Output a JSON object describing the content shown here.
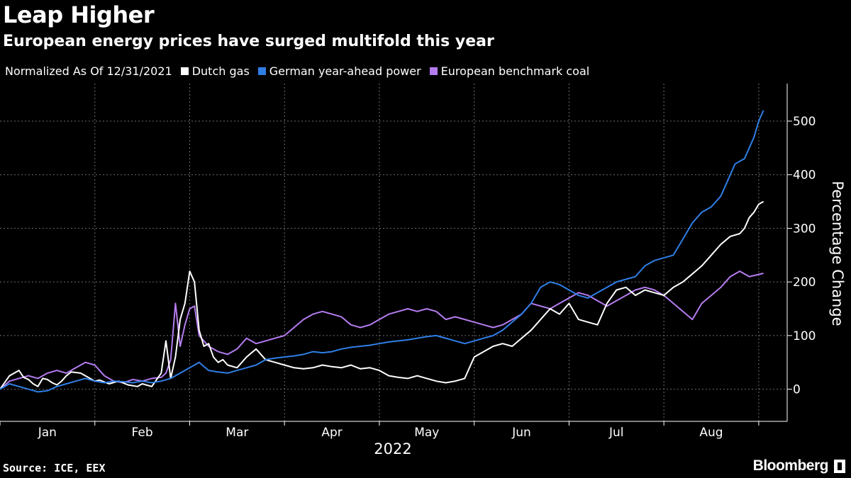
{
  "header": {
    "title": "Leap Higher",
    "subtitle": "European energy prices have surged multifold this year"
  },
  "legend": {
    "note": "Normalized As Of 12/31/2021"
  },
  "footer": {
    "source": "Source: ICE, EEX",
    "brand": "Bloomberg"
  },
  "colors": {
    "background": "#000000",
    "dutch_gas": "#ffffff",
    "german_power": "#2f7fe6",
    "coal": "#b57cf0",
    "grid": "#6e6e6e"
  },
  "chart_data": {
    "type": "line",
    "title": "Leap Higher",
    "subtitle": "European energy prices have surged multifold this year",
    "xlabel": "2022",
    "ylabel": "Percentage Change",
    "ylim": [
      -60,
      570
    ],
    "yticks": [
      0,
      100,
      200,
      300,
      400,
      500
    ],
    "xlim": [
      0,
      8.3
    ],
    "x_unit": "months since 2021-12-31",
    "xticks": [
      {
        "label": "Jan",
        "x": 0.5
      },
      {
        "label": "Feb",
        "x": 1.5
      },
      {
        "label": "Mar",
        "x": 2.5
      },
      {
        "label": "Apr",
        "x": 3.5
      },
      {
        "label": "May",
        "x": 4.5
      },
      {
        "label": "Jun",
        "x": 5.5
      },
      {
        "label": "Jul",
        "x": 6.5
      },
      {
        "label": "Aug",
        "x": 7.5
      }
    ],
    "month_boundaries": [
      0,
      1,
      2,
      3,
      4,
      5,
      6,
      7,
      8
    ],
    "grid": true,
    "legend_position": "top-left",
    "series": [
      {
        "name": "Dutch gas",
        "color": "#ffffff",
        "x": [
          0,
          0.1,
          0.15,
          0.2,
          0.25,
          0.3,
          0.35,
          0.4,
          0.45,
          0.5,
          0.55,
          0.6,
          0.65,
          0.7,
          0.75,
          0.85,
          0.95,
          1.0,
          1.05,
          1.15,
          1.25,
          1.35,
          1.45,
          1.5,
          1.6,
          1.7,
          1.75,
          1.8,
          1.85,
          1.9,
          1.95,
          2.0,
          2.05,
          2.1,
          2.15,
          2.2,
          2.25,
          2.3,
          2.35,
          2.4,
          2.5,
          2.6,
          2.7,
          2.8,
          2.9,
          3.0,
          3.1,
          3.2,
          3.3,
          3.4,
          3.5,
          3.6,
          3.7,
          3.8,
          3.9,
          4.0,
          4.1,
          4.2,
          4.3,
          4.4,
          4.5,
          4.6,
          4.7,
          4.8,
          4.9,
          5.0,
          5.1,
          5.2,
          5.3,
          5.4,
          5.5,
          5.6,
          5.7,
          5.8,
          5.9,
          6.0,
          6.1,
          6.2,
          6.3,
          6.4,
          6.5,
          6.6,
          6.7,
          6.8,
          6.9,
          7.0,
          7.1,
          7.2,
          7.3,
          7.4,
          7.5,
          7.6,
          7.7,
          7.8,
          7.85,
          7.9,
          7.95,
          8.0,
          8.05
        ],
        "values": [
          0,
          25,
          30,
          35,
          22,
          18,
          10,
          5,
          20,
          18,
          12,
          8,
          15,
          25,
          32,
          30,
          20,
          15,
          17,
          10,
          15,
          8,
          5,
          10,
          5,
          30,
          90,
          20,
          60,
          130,
          160,
          220,
          200,
          110,
          80,
          85,
          60,
          50,
          55,
          45,
          40,
          60,
          75,
          55,
          50,
          45,
          40,
          38,
          40,
          45,
          42,
          40,
          45,
          38,
          40,
          35,
          25,
          22,
          20,
          25,
          20,
          15,
          12,
          15,
          20,
          60,
          70,
          80,
          85,
          80,
          95,
          110,
          130,
          150,
          140,
          160,
          130,
          125,
          120,
          160,
          185,
          190,
          175,
          185,
          180,
          175,
          190,
          200,
          215,
          230,
          250,
          270,
          285,
          290,
          300,
          320,
          330,
          345,
          350
        ]
      },
      {
        "name": "German year-ahead power",
        "color": "#2f7fe6",
        "x": [
          0,
          0.1,
          0.2,
          0.3,
          0.4,
          0.5,
          0.6,
          0.7,
          0.8,
          0.9,
          1.0,
          1.1,
          1.2,
          1.3,
          1.4,
          1.5,
          1.6,
          1.7,
          1.8,
          1.9,
          2.0,
          2.1,
          2.2,
          2.3,
          2.4,
          2.5,
          2.6,
          2.7,
          2.8,
          2.9,
          3.0,
          3.1,
          3.2,
          3.3,
          3.4,
          3.5,
          3.6,
          3.7,
          3.8,
          3.9,
          4.0,
          4.1,
          4.2,
          4.3,
          4.4,
          4.5,
          4.6,
          4.7,
          4.8,
          4.9,
          5.0,
          5.1,
          5.2,
          5.3,
          5.4,
          5.5,
          5.6,
          5.7,
          5.8,
          5.9,
          6.0,
          6.1,
          6.2,
          6.3,
          6.4,
          6.5,
          6.6,
          6.7,
          6.8,
          6.9,
          7.0,
          7.1,
          7.2,
          7.3,
          7.4,
          7.5,
          7.6,
          7.7,
          7.75,
          7.8,
          7.85,
          7.9,
          7.95,
          8.0,
          8.05
        ],
        "values": [
          0,
          10,
          5,
          0,
          -5,
          -3,
          5,
          10,
          15,
          20,
          15,
          12,
          15,
          14,
          12,
          15,
          12,
          15,
          20,
          30,
          40,
          50,
          35,
          32,
          30,
          35,
          40,
          45,
          55,
          58,
          60,
          62,
          65,
          70,
          68,
          70,
          75,
          78,
          80,
          82,
          85,
          88,
          90,
          92,
          95,
          98,
          100,
          95,
          90,
          85,
          90,
          95,
          100,
          110,
          125,
          140,
          160,
          190,
          200,
          195,
          185,
          175,
          170,
          180,
          190,
          200,
          205,
          210,
          230,
          240,
          245,
          250,
          280,
          310,
          330,
          340,
          360,
          400,
          420,
          425,
          430,
          450,
          470,
          500,
          520
        ]
      },
      {
        "name": "European benchmark coal",
        "color": "#b57cf0",
        "x": [
          0,
          0.1,
          0.2,
          0.3,
          0.4,
          0.5,
          0.6,
          0.7,
          0.8,
          0.9,
          1.0,
          1.1,
          1.2,
          1.3,
          1.4,
          1.5,
          1.6,
          1.7,
          1.75,
          1.8,
          1.85,
          1.9,
          1.95,
          2.0,
          2.05,
          2.1,
          2.15,
          2.2,
          2.3,
          2.4,
          2.5,
          2.6,
          2.7,
          2.8,
          2.9,
          3.0,
          3.1,
          3.2,
          3.3,
          3.4,
          3.5,
          3.6,
          3.7,
          3.8,
          3.9,
          4.0,
          4.1,
          4.2,
          4.3,
          4.4,
          4.5,
          4.6,
          4.7,
          4.8,
          4.9,
          5.0,
          5.1,
          5.2,
          5.3,
          5.4,
          5.5,
          5.6,
          5.7,
          5.8,
          5.9,
          6.0,
          6.1,
          6.2,
          6.3,
          6.4,
          6.5,
          6.6,
          6.7,
          6.8,
          6.9,
          7.0,
          7.1,
          7.2,
          7.3,
          7.4,
          7.5,
          7.6,
          7.7,
          7.8,
          7.85,
          7.9,
          7.95,
          8.0,
          8.05
        ],
        "values": [
          0,
          15,
          20,
          25,
          20,
          30,
          35,
          30,
          40,
          50,
          45,
          25,
          15,
          12,
          18,
          15,
          20,
          22,
          30,
          55,
          160,
          80,
          120,
          150,
          155,
          100,
          90,
          80,
          70,
          65,
          75,
          95,
          85,
          90,
          95,
          100,
          115,
          130,
          140,
          145,
          140,
          135,
          120,
          115,
          120,
          130,
          140,
          145,
          150,
          145,
          150,
          145,
          130,
          135,
          130,
          125,
          120,
          115,
          120,
          130,
          140,
          160,
          155,
          150,
          160,
          170,
          180,
          175,
          165,
          155,
          165,
          175,
          185,
          190,
          185,
          175,
          160,
          145,
          130,
          160,
          175,
          190,
          210,
          220,
          215,
          210,
          212,
          214,
          216
        ]
      }
    ]
  }
}
